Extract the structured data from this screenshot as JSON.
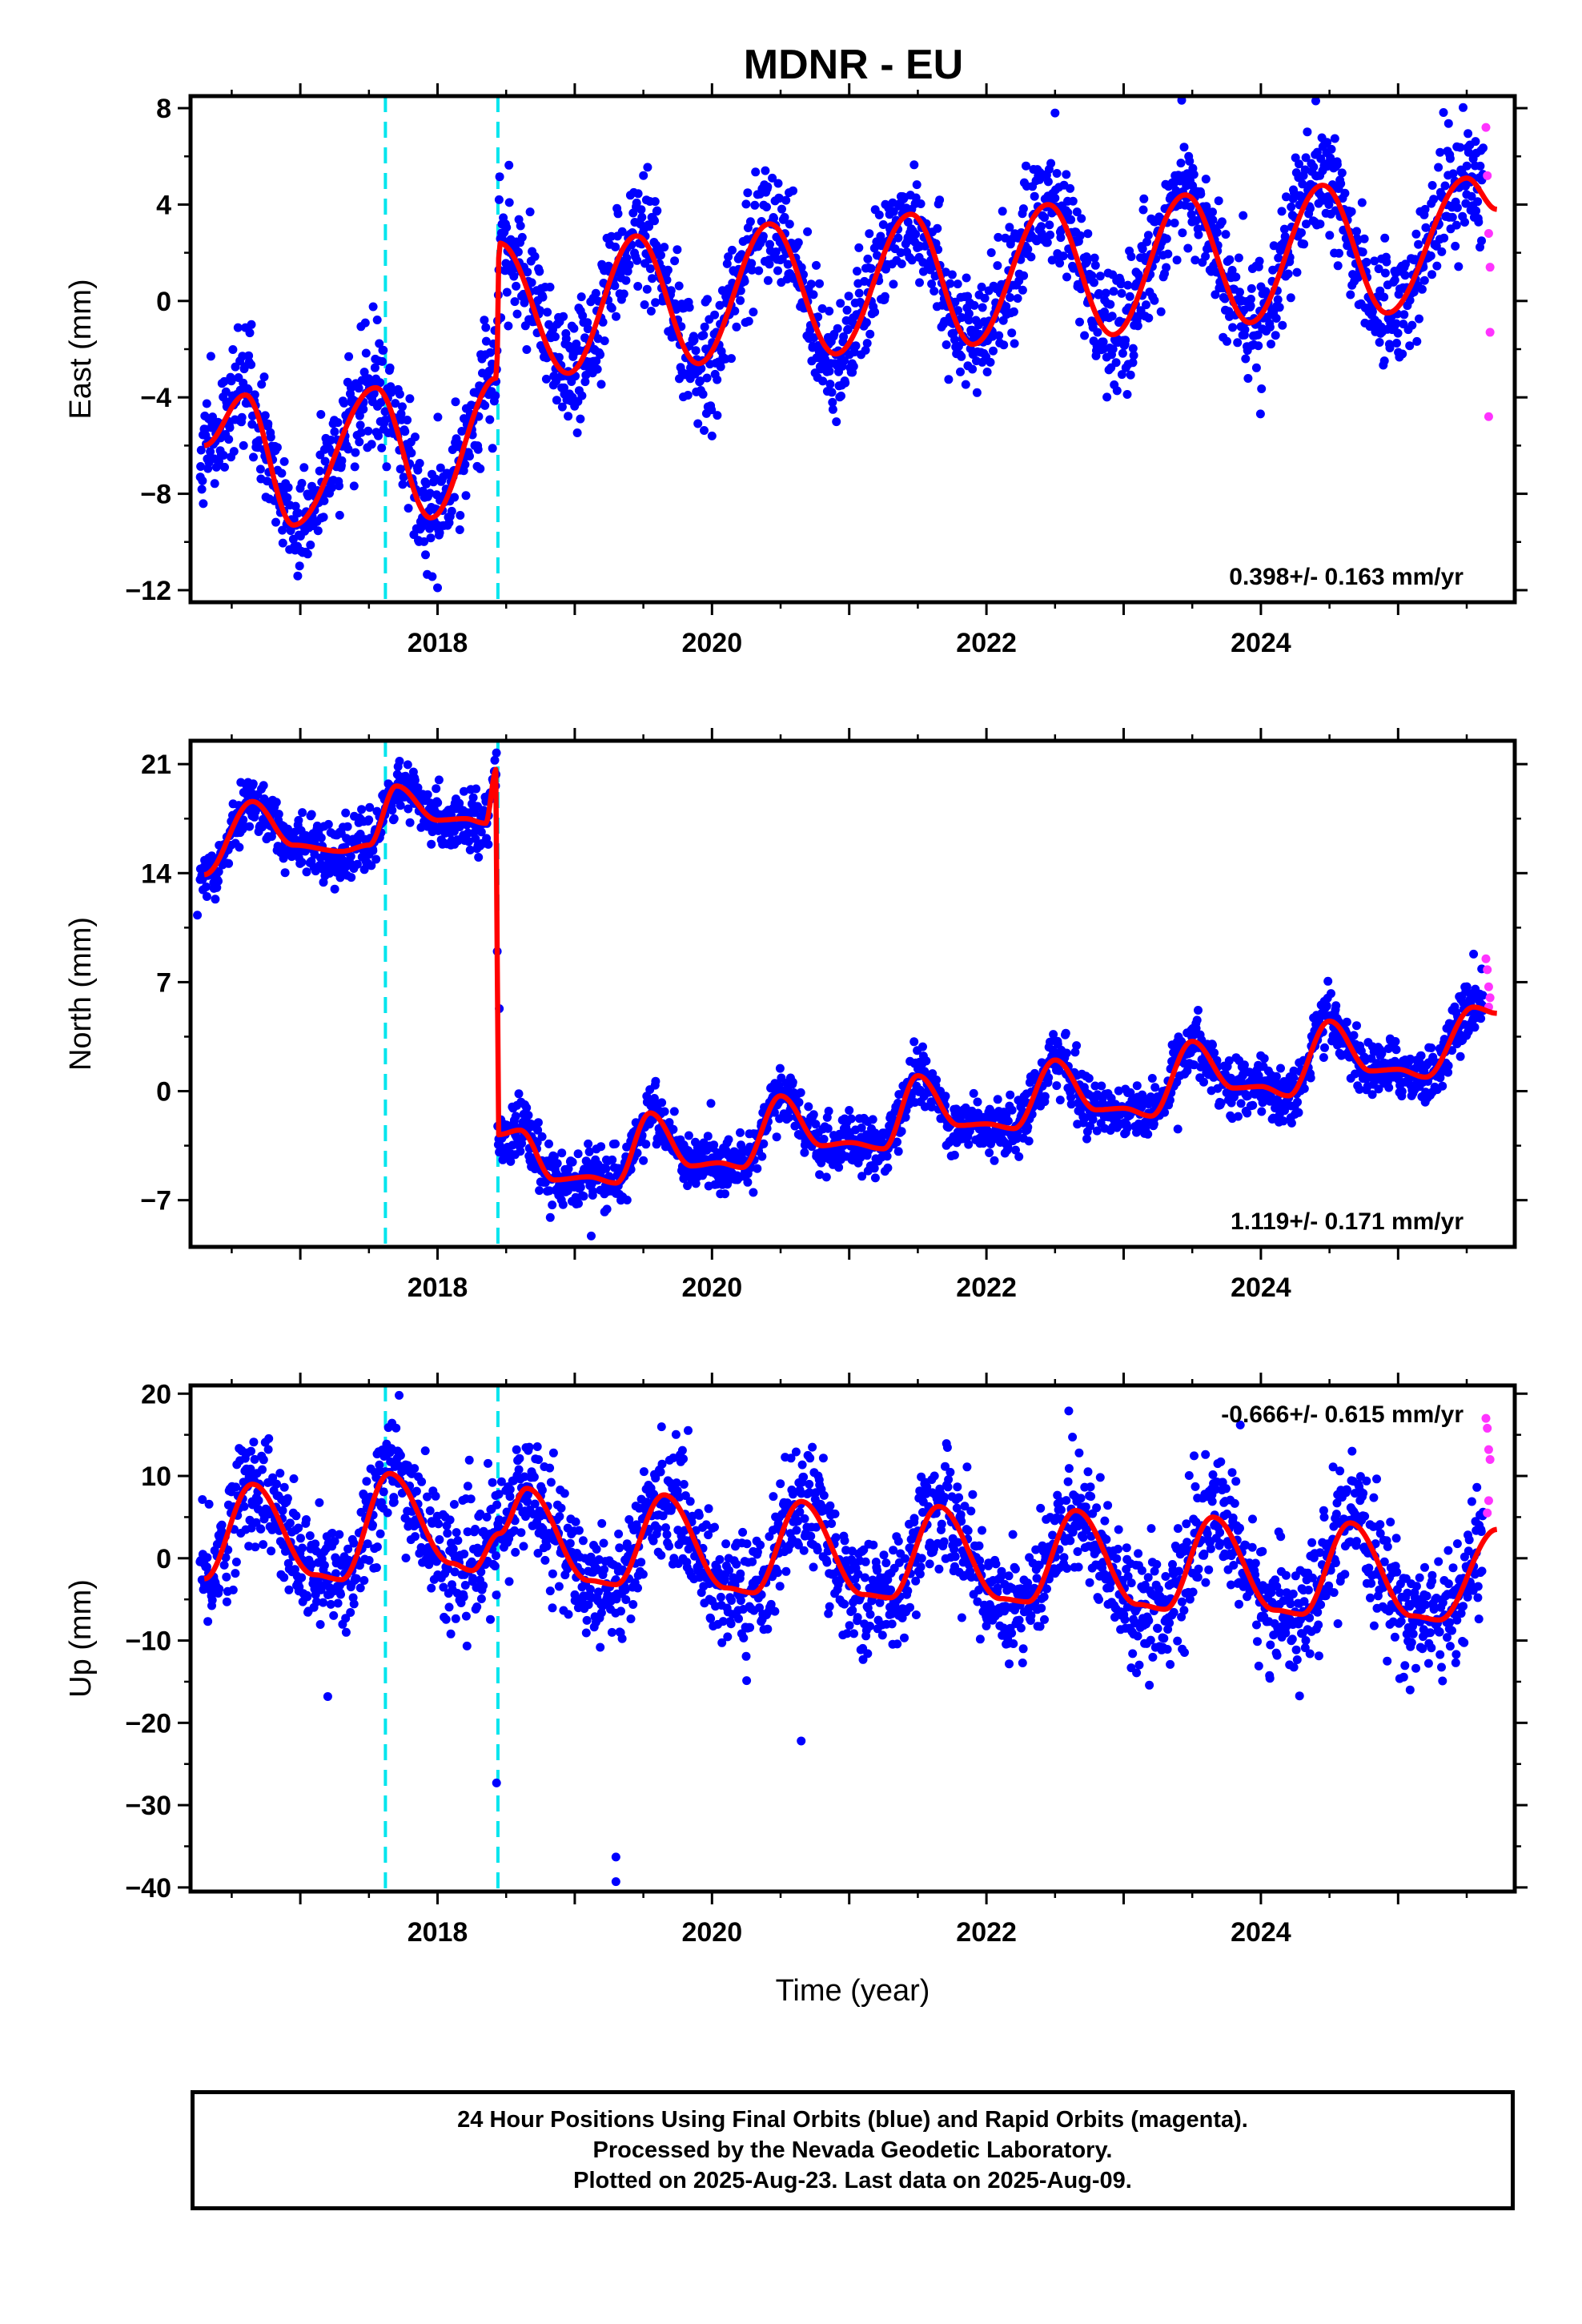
{
  "title": "MDNR - EU",
  "colors": {
    "final_orbits": "#0000ff",
    "rapid_orbits": "#ff33ff",
    "model_fit": "#ff0000",
    "offset_lines": "#00e5ee"
  },
  "chart_data": [
    {
      "type": "scatter",
      "component": "east",
      "ylabel": "East (mm)",
      "xlabel": "",
      "xlim": [
        2016.2,
        2025.85
      ],
      "ylim": [
        -12.5,
        8.5
      ],
      "yticks": [
        -12,
        -8,
        -4,
        0,
        4,
        8
      ],
      "xticks": [
        2018,
        2020,
        2022,
        2024
      ],
      "rate_label": "0.398+/- 0.163 mm/yr",
      "rate_position": "bottom-right",
      "offset_epochs": [
        2017.62,
        2018.44
      ],
      "fit": {
        "segments": [
          {
            "start": 2016.3,
            "end": 2018.44,
            "offset": -5.5,
            "trend": 0.4,
            "annual_amp": 2.7,
            "annual_phase_year": 2016.6,
            "semiannual_amp": 0.6
          },
          {
            "start": 2018.44,
            "end": 2025.72,
            "offset": -0.6,
            "trend": 0.4,
            "annual_amp": 2.6,
            "annual_phase_year": 2019.45,
            "semiannual_amp": 0.4
          }
        ],
        "key_points": [
          [
            2016.3,
            -6.0
          ],
          [
            2016.6,
            -3.9
          ],
          [
            2016.95,
            -9.3
          ],
          [
            2017.55,
            -3.6
          ],
          [
            2017.95,
            -9.0
          ],
          [
            2018.43,
            -3.2
          ],
          [
            2018.45,
            2.4
          ],
          [
            2018.95,
            -3.0
          ],
          [
            2019.45,
            2.7
          ],
          [
            2019.9,
            -2.6
          ],
          [
            2020.42,
            3.2
          ],
          [
            2020.9,
            -2.2
          ],
          [
            2021.45,
            3.6
          ],
          [
            2021.9,
            -1.8
          ],
          [
            2022.45,
            4.0
          ],
          [
            2022.92,
            -1.4
          ],
          [
            2023.45,
            4.4
          ],
          [
            2023.92,
            -0.9
          ],
          [
            2024.45,
            4.8
          ],
          [
            2024.92,
            -0.5
          ],
          [
            2025.5,
            5.1
          ],
          [
            2025.72,
            3.8
          ]
        ]
      },
      "scatter_noise_mm": 1.2,
      "rapid_points": [
        [
          2025.64,
          7.2
        ],
        [
          2025.65,
          5.2
        ],
        [
          2025.66,
          2.8
        ],
        [
          2025.67,
          1.4
        ],
        [
          2025.67,
          -1.3
        ],
        [
          2025.66,
          -4.8
        ]
      ],
      "outliers": [
        [
          2022.5,
          7.8
        ],
        [
          2024.4,
          8.3
        ],
        [
          2018.0,
          -11.9
        ],
        [
          2020.0,
          -5.6
        ]
      ]
    },
    {
      "type": "scatter",
      "component": "north",
      "ylabel": "North (mm)",
      "xlabel": "",
      "xlim": [
        2016.2,
        2025.85
      ],
      "ylim": [
        -10,
        22.5
      ],
      "yticks": [
        -7,
        0,
        7,
        14,
        21
      ],
      "xticks": [
        2018,
        2020,
        2022,
        2024
      ],
      "rate_label": "1.119+/- 0.171 mm/yr",
      "rate_position": "bottom-right",
      "offset_epochs": [
        2017.62,
        2018.44
      ],
      "fit": {
        "key_points": [
          [
            2016.3,
            13.9
          ],
          [
            2016.65,
            18.6
          ],
          [
            2016.95,
            15.8
          ],
          [
            2017.3,
            15.4
          ],
          [
            2017.5,
            15.8
          ],
          [
            2017.7,
            19.6
          ],
          [
            2018.0,
            17.4
          ],
          [
            2018.2,
            17.5
          ],
          [
            2018.35,
            17.2
          ],
          [
            2018.43,
            20.7
          ],
          [
            2018.44,
            -2.8
          ],
          [
            2018.6,
            -2.5
          ],
          [
            2018.85,
            -5.7
          ],
          [
            2019.1,
            -5.5
          ],
          [
            2019.3,
            -5.9
          ],
          [
            2019.55,
            -1.4
          ],
          [
            2019.85,
            -4.8
          ],
          [
            2020.05,
            -4.6
          ],
          [
            2020.22,
            -4.9
          ],
          [
            2020.5,
            -0.3
          ],
          [
            2020.8,
            -3.5
          ],
          [
            2021.0,
            -3.3
          ],
          [
            2021.25,
            -3.7
          ],
          [
            2021.5,
            1.0
          ],
          [
            2021.8,
            -2.2
          ],
          [
            2022.0,
            -2.1
          ],
          [
            2022.2,
            -2.4
          ],
          [
            2022.5,
            2.0
          ],
          [
            2022.8,
            -1.2
          ],
          [
            2023.0,
            -1.1
          ],
          [
            2023.2,
            -1.6
          ],
          [
            2023.5,
            3.2
          ],
          [
            2023.8,
            0.2
          ],
          [
            2024.0,
            0.3
          ],
          [
            2024.2,
            -0.3
          ],
          [
            2024.5,
            4.5
          ],
          [
            2024.8,
            1.3
          ],
          [
            2025.0,
            1.4
          ],
          [
            2025.2,
            0.9
          ],
          [
            2025.55,
            5.4
          ],
          [
            2025.72,
            5.0
          ]
        ]
      },
      "scatter_noise_mm": 0.9,
      "rapid_points": [
        [
          2025.64,
          8.5
        ],
        [
          2025.65,
          7.8
        ],
        [
          2025.66,
          6.7
        ],
        [
          2025.67,
          6.0
        ],
        [
          2025.66,
          5.4
        ]
      ],
      "outliers": [
        [
          2018.45,
          5.3
        ],
        [
          2019.12,
          -9.3
        ],
        [
          2016.25,
          11.3
        ],
        [
          2025.55,
          8.8
        ]
      ]
    },
    {
      "type": "scatter",
      "component": "up",
      "ylabel": "Up (mm)",
      "xlabel": "Time (year)",
      "xlim": [
        2016.2,
        2025.85
      ],
      "ylim": [
        -40.5,
        21
      ],
      "yticks": [
        -40,
        -30,
        -20,
        -10,
        0,
        10,
        20
      ],
      "xticks": [
        2018,
        2020,
        2022,
        2024
      ],
      "rate_label": "-0.666+/- 0.615 mm/yr",
      "rate_position": "top-right",
      "offset_epochs": [
        2017.62,
        2018.44
      ],
      "fit": {
        "key_points": [
          [
            2016.3,
            -2.5
          ],
          [
            2016.65,
            9.0
          ],
          [
            2017.1,
            -2.0
          ],
          [
            2017.3,
            -2.6
          ],
          [
            2017.65,
            10.3
          ],
          [
            2018.1,
            -0.6
          ],
          [
            2018.25,
            -1.5
          ],
          [
            2018.45,
            3.0
          ],
          [
            2018.65,
            8.5
          ],
          [
            2019.1,
            -2.7
          ],
          [
            2019.3,
            -3.2
          ],
          [
            2019.65,
            7.7
          ],
          [
            2020.1,
            -3.6
          ],
          [
            2020.3,
            -4.2
          ],
          [
            2020.65,
            6.9
          ],
          [
            2021.1,
            -4.4
          ],
          [
            2021.3,
            -4.8
          ],
          [
            2021.65,
            6.3
          ],
          [
            2022.1,
            -4.9
          ],
          [
            2022.3,
            -5.3
          ],
          [
            2022.65,
            5.8
          ],
          [
            2023.1,
            -5.6
          ],
          [
            2023.3,
            -6.2
          ],
          [
            2023.65,
            5.0
          ],
          [
            2024.1,
            -6.3
          ],
          [
            2024.3,
            -6.8
          ],
          [
            2024.65,
            4.3
          ],
          [
            2025.1,
            -7.0
          ],
          [
            2025.3,
            -7.5
          ],
          [
            2025.72,
            3.5
          ]
        ]
      },
      "scatter_noise_mm": 3.5,
      "rapid_points": [
        [
          2025.64,
          17.0
        ],
        [
          2025.65,
          15.8
        ],
        [
          2025.66,
          13.2
        ],
        [
          2025.67,
          12.0
        ],
        [
          2025.66,
          7.0
        ],
        [
          2025.65,
          5.5
        ]
      ],
      "outliers": [
        [
          2017.2,
          -16.8
        ],
        [
          2018.43,
          -27.3
        ],
        [
          2019.3,
          -36.3
        ],
        [
          2019.3,
          -39.3
        ],
        [
          2020.65,
          -22.2
        ],
        [
          2023.85,
          16.2
        ],
        [
          2017.72,
          19.8
        ],
        [
          2022.6,
          17.9
        ]
      ]
    }
  ],
  "footer": {
    "line1": "24 Hour Positions Using Final Orbits (blue) and Rapid Orbits (magenta).",
    "line2": "Processed by the Nevada Geodetic Laboratory.",
    "line3": "Plotted on 2025-Aug-23. Last data on 2025-Aug-09."
  }
}
